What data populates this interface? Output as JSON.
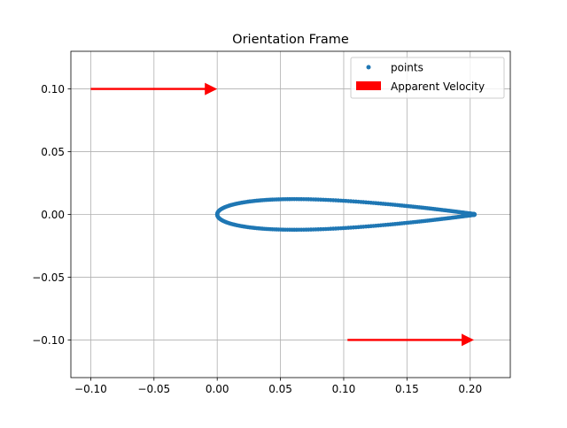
{
  "chart_data": {
    "type": "scatter",
    "title": "Orientation Frame",
    "xlabel": "",
    "ylabel": "",
    "xlim": [
      -0.1157,
      0.2317
    ],
    "ylim": [
      -0.13,
      0.13
    ],
    "x_ticks": [
      "−0.10",
      "−0.05",
      "0.00",
      "0.05",
      "0.10",
      "0.15",
      "0.20"
    ],
    "x_tick_values": [
      -0.1,
      -0.05,
      0.0,
      0.05,
      0.1,
      0.15,
      0.2
    ],
    "y_ticks": [
      "−0.10",
      "−0.05",
      "0.00",
      "0.05",
      "0.10"
    ],
    "y_tick_values": [
      -0.1,
      -0.05,
      0.0,
      0.05,
      0.1
    ],
    "grid": true,
    "legend_position": "upper right",
    "series": [
      {
        "name": "points",
        "kind": "scatter",
        "color": "#1f77b4",
        "airfoil": {
          "chord": 0.2034,
          "max_thickness_ratio": 0.12,
          "n_points": 160
        }
      }
    ],
    "arrows": [
      {
        "name": "Apparent Velocity",
        "start": [
          -0.1,
          0.1
        ],
        "delta": [
          0.1,
          0.0
        ],
        "color": "#ff0000"
      },
      {
        "name": "Apparent Velocity",
        "start": [
          0.103,
          -0.1
        ],
        "delta": [
          0.1,
          0.0
        ],
        "color": "#ff0000"
      }
    ],
    "legend": [
      {
        "label": "points",
        "marker": "dot",
        "color": "#1f77b4"
      },
      {
        "label": "Apparent Velocity",
        "marker": "patch",
        "color": "#ff0000"
      }
    ]
  }
}
